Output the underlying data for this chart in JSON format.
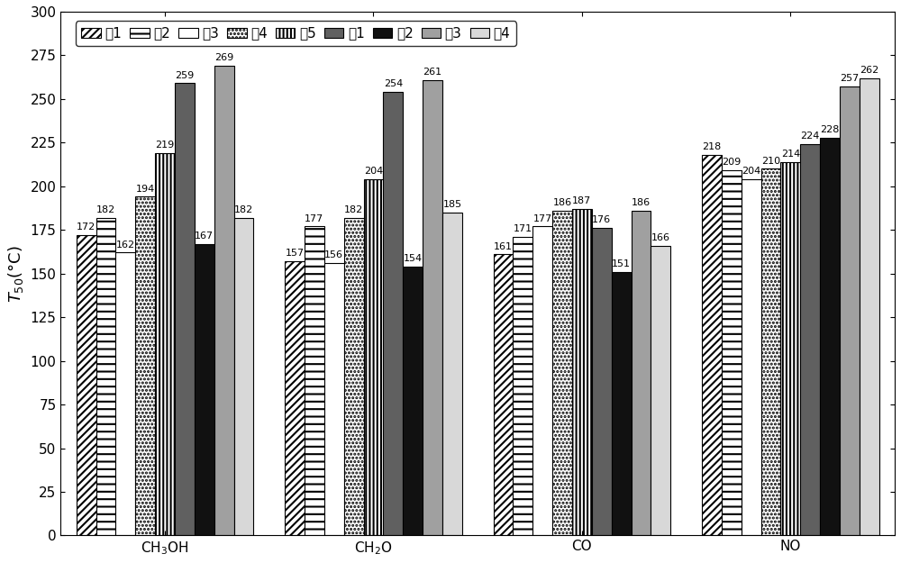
{
  "categories": [
    "CH$_3$OH",
    "CH$_2$O",
    "CO",
    "NO"
  ],
  "series_labels": [
    "剗1",
    "剗2",
    "剗3",
    "剗4",
    "剗5",
    "剷1",
    "剷2",
    "剷3",
    "剷4"
  ],
  "values": {
    "剗1": [
      172,
      157,
      161,
      218
    ],
    "剗2": [
      182,
      177,
      171,
      209
    ],
    "剗3": [
      162,
      156,
      177,
      204
    ],
    "剗4": [
      194,
      182,
      186,
      210
    ],
    "剗5": [
      219,
      204,
      187,
      214
    ],
    "剷1": [
      259,
      254,
      176,
      224
    ],
    "剷2": [
      167,
      154,
      151,
      228
    ],
    "剷3": [
      269,
      261,
      186,
      257
    ],
    "剷4": [
      182,
      185,
      166,
      262
    ]
  },
  "bar_styles": {
    "剗1": {
      "facecolor": "white",
      "hatch": "////",
      "edgecolor": "black"
    },
    "剗2": {
      "facecolor": "white",
      "hatch": "--",
      "edgecolor": "black"
    },
    "剗3": {
      "facecolor": "white",
      "hatch": "====",
      "edgecolor": "black"
    },
    "剗4": {
      "facecolor": "white",
      "hatch": "....",
      "edgecolor": "black"
    },
    "剗5": {
      "facecolor": "white",
      "hatch": "||||",
      "edgecolor": "black"
    },
    "剷1": {
      "facecolor": "#606060",
      "hatch": "",
      "edgecolor": "black"
    },
    "剷2": {
      "facecolor": "#111111",
      "hatch": "",
      "edgecolor": "black"
    },
    "剷3": {
      "facecolor": "#a0a0a0",
      "hatch": "",
      "edgecolor": "black"
    },
    "剷4": {
      "facecolor": "#d8d8d8",
      "hatch": "",
      "edgecolor": "black"
    }
  },
  "ylabel": "$T_{50}$(°C)",
  "ylim": [
    0,
    300
  ],
  "yticks": [
    0,
    25,
    50,
    75,
    100,
    125,
    150,
    175,
    200,
    225,
    250,
    275,
    300
  ],
  "figsize": [
    10,
    6.25
  ],
  "dpi": 100,
  "bar_label_fontsize": 8,
  "legend_fontsize": 11,
  "axis_fontsize": 13,
  "group_width": 0.85
}
